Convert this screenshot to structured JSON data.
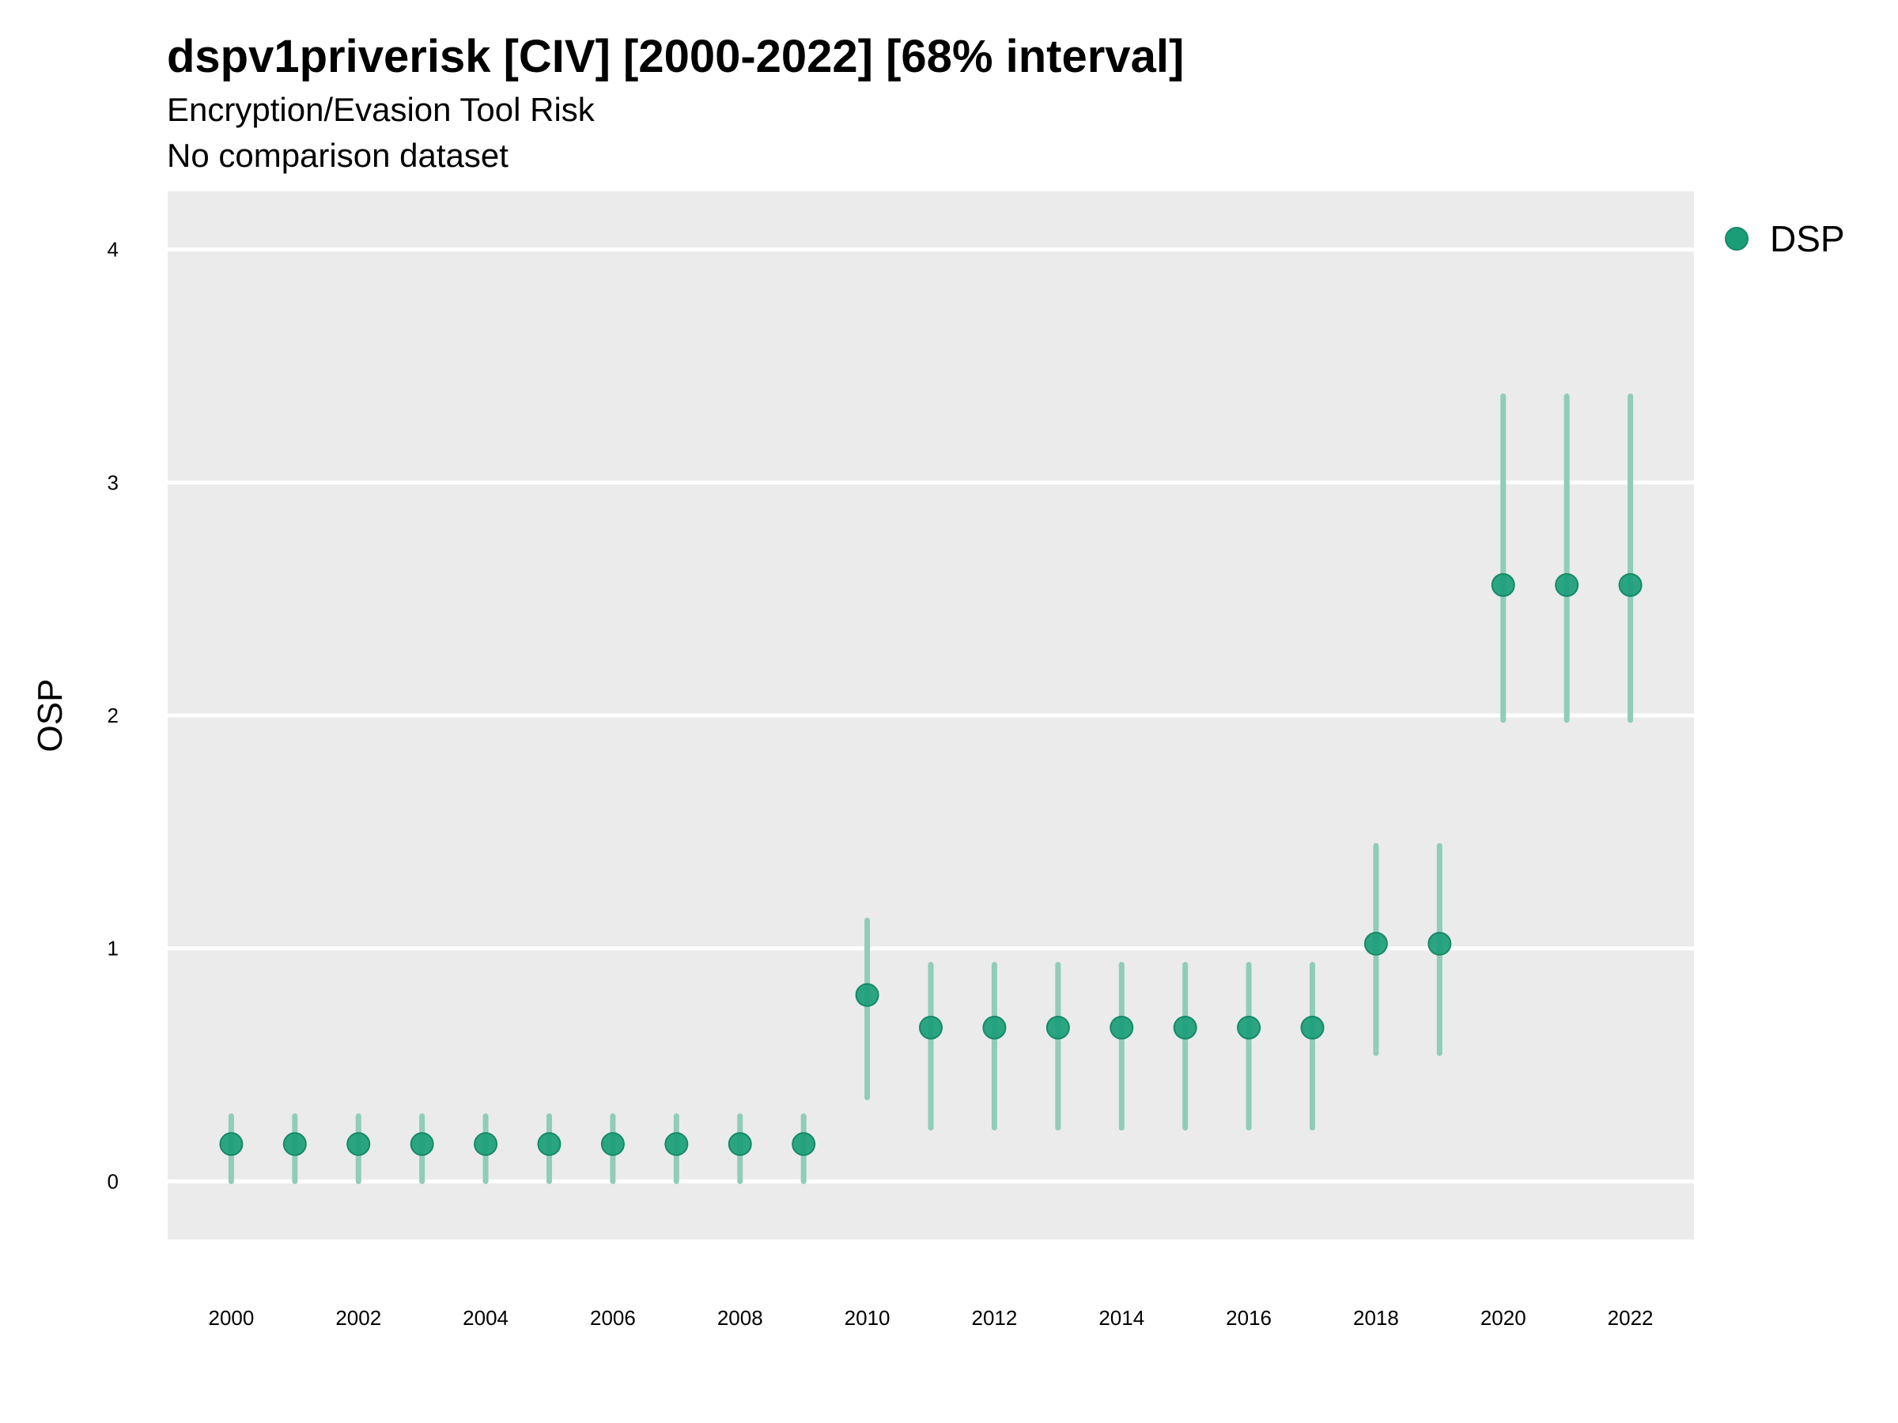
{
  "chart_data": {
    "type": "scatter",
    "title": "dspv1priverisk [CIV] [2000-2022] [68% interval]",
    "subtitle": "Encryption/Evasion Tool Risk",
    "subtitle2": "No comparison dataset",
    "xlabel": "",
    "ylabel": "OSP",
    "ylim": [
      -0.25,
      4.25
    ],
    "yticks": [
      0,
      1,
      2,
      3,
      4
    ],
    "xlim": [
      1999,
      2023
    ],
    "xticks": [
      2000,
      2002,
      2004,
      2006,
      2008,
      2010,
      2012,
      2014,
      2016,
      2018,
      2020,
      2022
    ],
    "grid": true,
    "legend_position": "right",
    "colors": {
      "point": "#1a9e77",
      "interval": "#8fcdb8",
      "panel": "#ebebeb",
      "grid": "#ffffff"
    },
    "series": [
      {
        "name": "DSP",
        "x": [
          2000,
          2001,
          2002,
          2003,
          2004,
          2005,
          2006,
          2007,
          2008,
          2009,
          2010,
          2011,
          2012,
          2013,
          2014,
          2015,
          2016,
          2017,
          2018,
          2019,
          2020,
          2021,
          2022
        ],
        "y": [
          0.16,
          0.16,
          0.16,
          0.16,
          0.16,
          0.16,
          0.16,
          0.16,
          0.16,
          0.16,
          0.8,
          0.66,
          0.66,
          0.66,
          0.66,
          0.66,
          0.66,
          0.66,
          1.02,
          1.02,
          2.56,
          2.56,
          2.56
        ],
        "lower": [
          0.0,
          0.0,
          0.0,
          0.0,
          0.0,
          0.0,
          0.0,
          0.0,
          0.0,
          0.0,
          0.36,
          0.23,
          0.23,
          0.23,
          0.23,
          0.23,
          0.23,
          0.23,
          0.55,
          0.55,
          1.98,
          1.98,
          1.98
        ],
        "upper": [
          0.28,
          0.28,
          0.28,
          0.28,
          0.28,
          0.28,
          0.28,
          0.28,
          0.28,
          0.28,
          1.12,
          0.93,
          0.93,
          0.93,
          0.93,
          0.93,
          0.93,
          0.93,
          1.44,
          1.44,
          3.37,
          3.37,
          3.37
        ]
      }
    ]
  }
}
